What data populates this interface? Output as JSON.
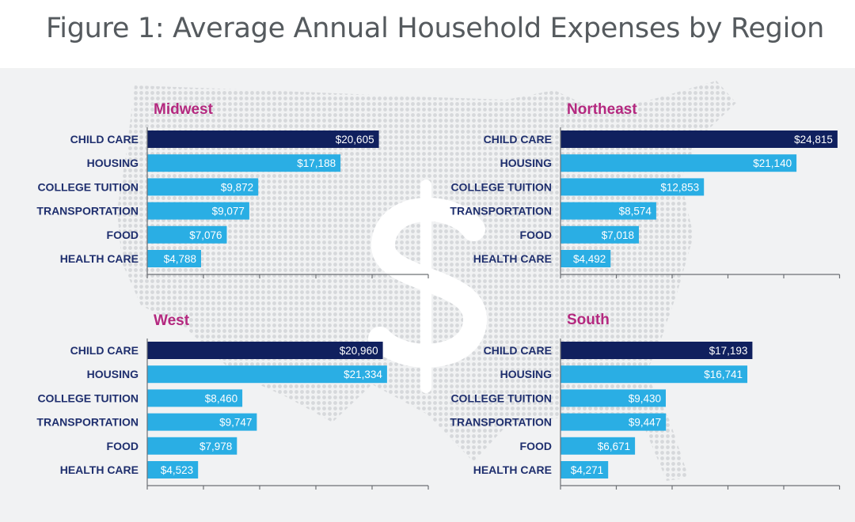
{
  "title": "Figure 1: Average Annual Household Expenses by Region",
  "colors": {
    "highlight": "#10205e",
    "bar": "#2aaee4",
    "region_title": "#b4287f",
    "category_label": "#1f2f6e",
    "axis": "#6d7075",
    "panel_background": "#f1f2f3",
    "map": "#d9dbdd"
  },
  "chart_data": [
    {
      "type": "bar",
      "orientation": "horizontal",
      "title": "Midwest",
      "categories": [
        "CHILD CARE",
        "HOUSING",
        "COLLEGE TUITION",
        "TRANSPORTATION",
        "FOOD",
        "HEALTH CARE"
      ],
      "values": [
        20605,
        17188,
        9872,
        9077,
        7076,
        4788
      ],
      "value_labels": [
        "$20,605",
        "$17,188",
        "$9,872",
        "$9,077",
        "$7,076",
        "$4,788"
      ],
      "xlim": [
        0,
        25000
      ],
      "x_ticks": [
        0,
        5000,
        10000,
        15000,
        20000,
        25000
      ],
      "highlight_category": "CHILD CARE"
    },
    {
      "type": "bar",
      "orientation": "horizontal",
      "title": "Northeast",
      "categories": [
        "CHILD CARE",
        "HOUSING",
        "COLLEGE TUITION",
        "TRANSPORTATION",
        "FOOD",
        "HEALTH CARE"
      ],
      "values": [
        24815,
        21140,
        12853,
        8574,
        7018,
        4492
      ],
      "value_labels": [
        "$24,815",
        "$21,140",
        "$12,853",
        "$8,574",
        "$7,018",
        "$4,492"
      ],
      "xlim": [
        0,
        25000
      ],
      "x_ticks": [
        0,
        5000,
        10000,
        15000,
        20000,
        25000
      ],
      "highlight_category": "CHILD CARE"
    },
    {
      "type": "bar",
      "orientation": "horizontal",
      "title": "West",
      "categories": [
        "CHILD CARE",
        "HOUSING",
        "COLLEGE TUITION",
        "TRANSPORTATION",
        "FOOD",
        "HEALTH CARE"
      ],
      "values": [
        20960,
        21334,
        8460,
        9747,
        7978,
        4523
      ],
      "value_labels": [
        "$20,960",
        "$21,334",
        "$8,460",
        "$9,747",
        "$7,978",
        "$4,523"
      ],
      "xlim": [
        0,
        25000
      ],
      "x_ticks": [
        0,
        5000,
        10000,
        15000,
        20000,
        25000
      ],
      "highlight_category": "CHILD CARE"
    },
    {
      "type": "bar",
      "orientation": "horizontal",
      "title": "South",
      "categories": [
        "CHILD CARE",
        "HOUSING",
        "COLLEGE TUITION",
        "TRANSPORTATION",
        "FOOD",
        "HEALTH CARE"
      ],
      "values": [
        17193,
        16741,
        9430,
        9447,
        6671,
        4271
      ],
      "value_labels": [
        "$17,193",
        "$16,741",
        "$9,430",
        "$9,447",
        "$6,671",
        "$4,271"
      ],
      "xlim": [
        0,
        25000
      ],
      "x_ticks": [
        0,
        5000,
        10000,
        15000,
        20000,
        25000
      ],
      "highlight_category": "CHILD CARE"
    }
  ]
}
